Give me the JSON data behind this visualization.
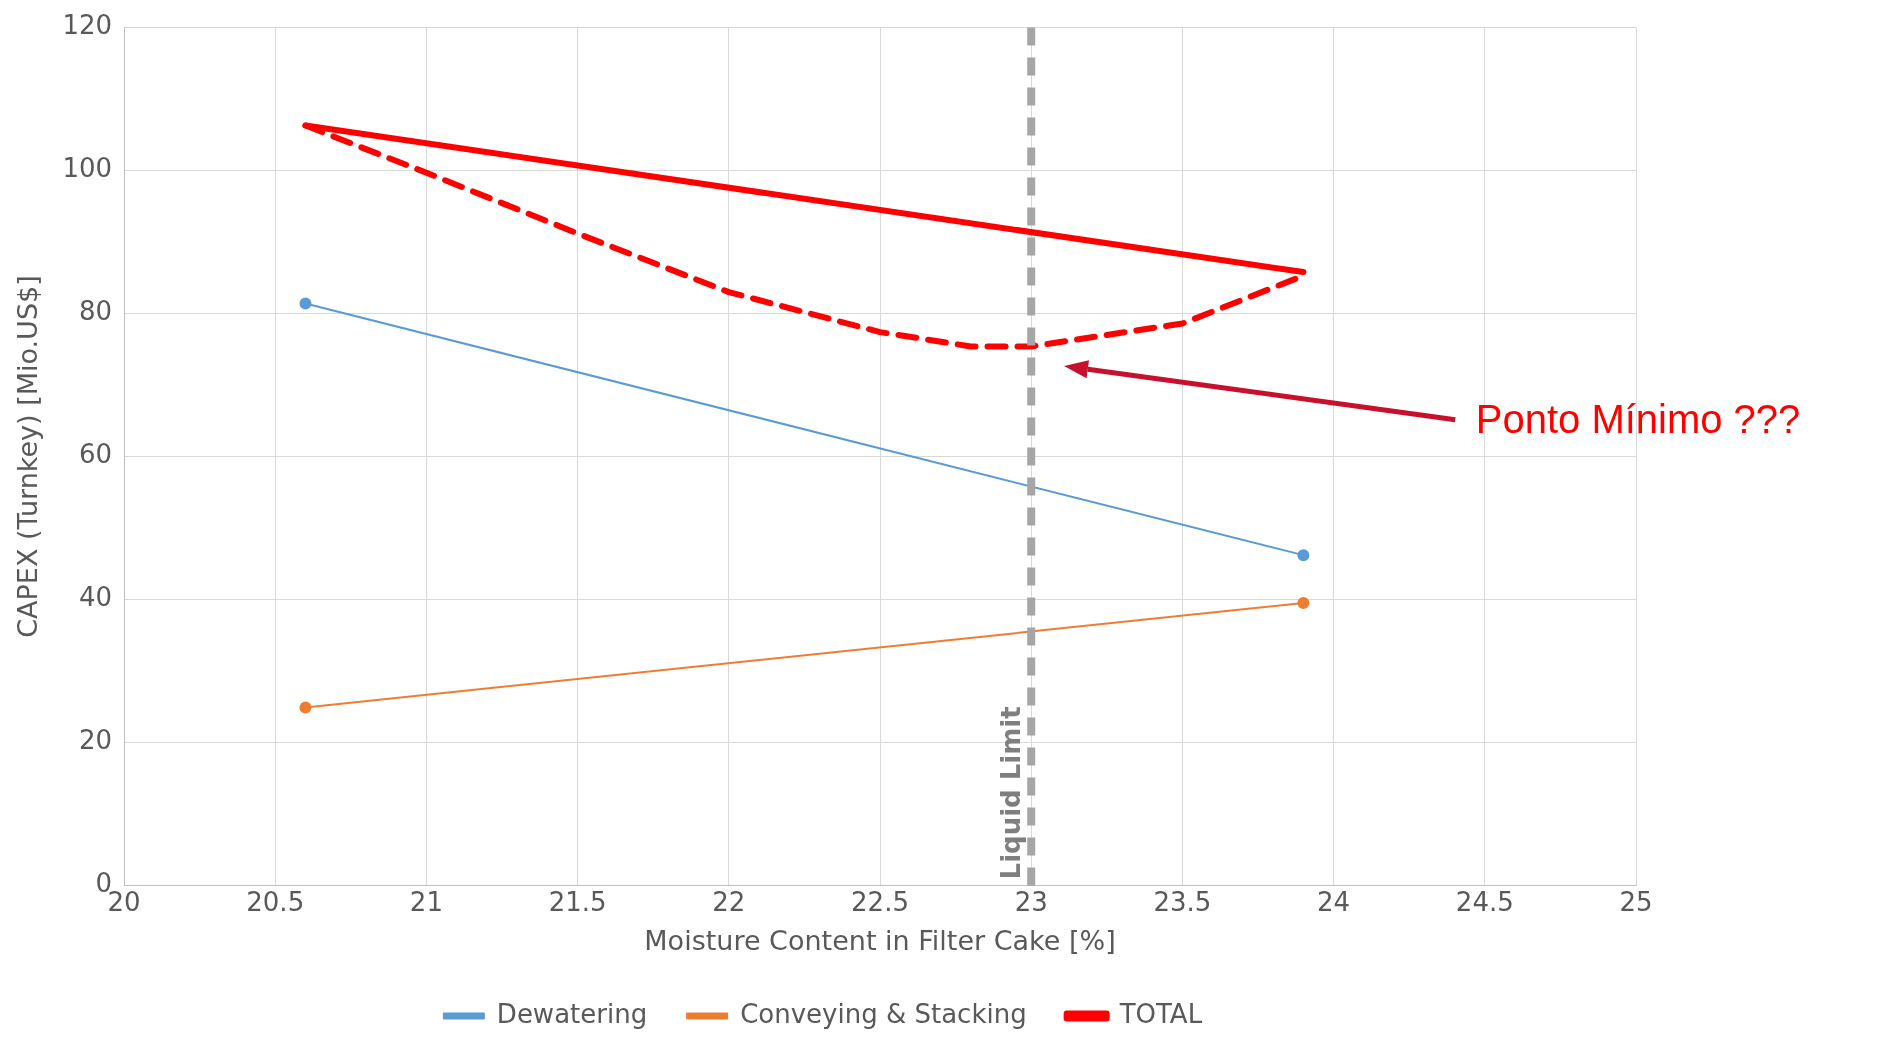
{
  "chart_data": {
    "type": "line",
    "xlabel": "Moisture Content in Filter Cake [%]",
    "ylabel": "CAPEX (Turnkey) [Mio.US$]",
    "series": [
      {
        "name": "Dewatering",
        "color": "#5b9bd5",
        "x": [
          20.6,
          23.9
        ],
        "values": [
          81.4,
          46.2
        ],
        "marker": "circle"
      },
      {
        "name": "Conveying & Stacking",
        "color": "#ed7d31",
        "x": [
          20.6,
          23.9
        ],
        "values": [
          24.9,
          39.5
        ],
        "marker": "circle"
      },
      {
        "name": "TOTAL",
        "color": "#ff0000",
        "x": [
          20.6,
          23.9
        ],
        "values": [
          106.3,
          85.8
        ],
        "marker": "none"
      },
      {
        "color": "#ff0000",
        "x": [
          20.6,
          21,
          21.5,
          22,
          22.5,
          22.8,
          23,
          23.5,
          23.9
        ],
        "values": [
          106.3,
          99.7,
          91.2,
          83,
          77.4,
          75.4,
          75.4,
          78.6,
          85.3
        ],
        "marker": "none",
        "line_style": "dashed"
      }
    ],
    "xlim": [
      20,
      25
    ],
    "xticks": [
      20,
      20.5,
      21,
      21.5,
      22,
      22.5,
      23,
      23.5,
      24,
      24.5,
      25
    ],
    "ylim": [
      0,
      120
    ],
    "yticks": [
      0,
      20,
      40,
      60,
      80,
      100,
      120
    ],
    "grid": true,
    "legend": "bottom",
    "ref_lines": [
      {
        "axis": "x",
        "value": 23,
        "label": "Liquid Limit",
        "color": "#a6a6a6",
        "line_style": "dashed"
      }
    ],
    "annotations": [
      "Ponto Mínimo ???"
    ]
  }
}
